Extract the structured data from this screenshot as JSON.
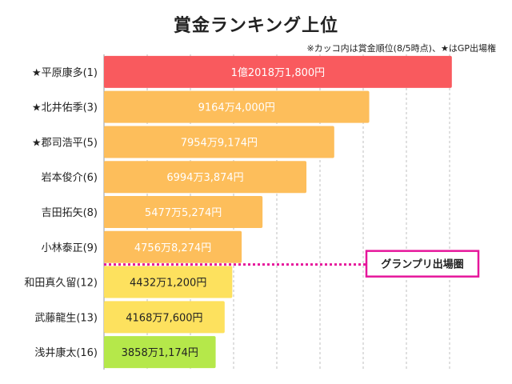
{
  "title": "賞金ランキング上位",
  "note": "※カッコ内は賞金順位(8/5時点)、★はGP出場権",
  "chart_data": {
    "type": "bar",
    "orientation": "horizontal",
    "title": "賞金ランキング上位",
    "grid": true,
    "categories": [
      "★平原康多(1)",
      "★北井佑季(3)",
      "★郡司浩平(5)",
      "岩本俊介(6)",
      "吉田拓矢(8)",
      "小林泰正(9)",
      "和田真久留(12)",
      "武藤龍生(13)",
      "浅井康太(16)"
    ],
    "values": [
      120181800,
      91644000,
      79549174,
      69943874,
      54775274,
      47568274,
      44321200,
      41687600,
      38581174
    ],
    "value_labels": [
      "1億2018万1,800円",
      "9164万4,000円",
      "7954万9,174円",
      "6994万3,874円",
      "5477万5,274円",
      "4756万8,274円",
      "4432万1,200円",
      "4168万7,600円",
      "3858万1,174円"
    ],
    "colors": [
      "#f95a5e",
      "#fdbe5b",
      "#fdbe5b",
      "#fdbe5b",
      "#fdbe5b",
      "#fdbe5b",
      "#fde15e",
      "#fde15e",
      "#b5e84a"
    ],
    "label_colors": [
      "#ffffff",
      "#ffffff",
      "#ffffff",
      "#ffffff",
      "#ffffff",
      "#ffffff",
      "#222222",
      "#222222",
      "#222222"
    ],
    "xlim": [
      0,
      123000000
    ],
    "cutoff_label": "グランプリ出場圏",
    "cutoff_after_rank": 6,
    "cutoff_color": "#e6169b"
  }
}
